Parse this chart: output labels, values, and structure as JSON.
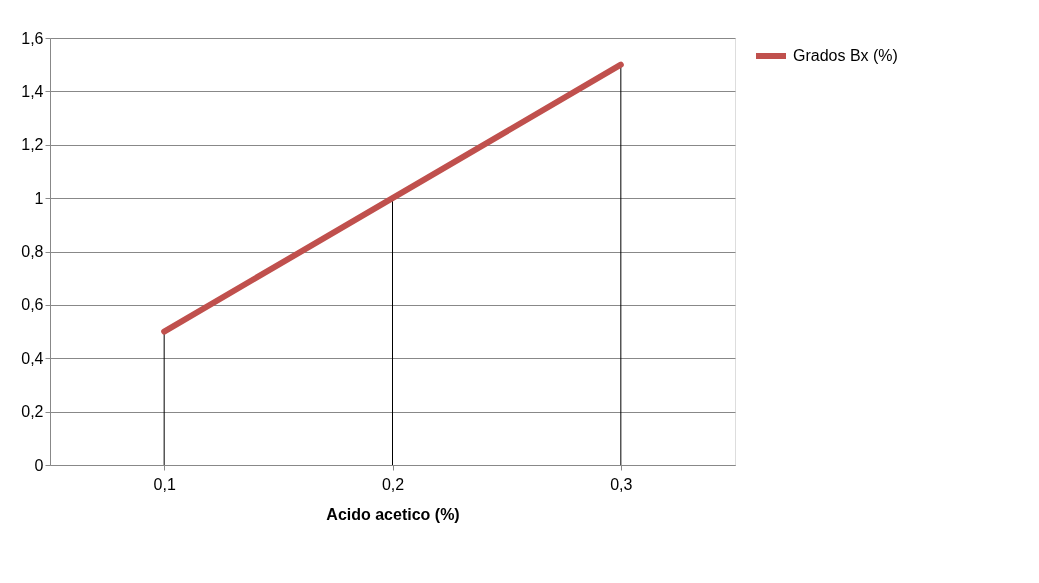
{
  "chart_data": {
    "type": "line",
    "xlabel": "Acido acetico (%)",
    "categories": [
      "0,1",
      "0,2",
      "0,3"
    ],
    "series": [
      {
        "name": "Grados Bx (%)",
        "color": "#c0504d",
        "values": [
          0.5,
          1,
          1.5
        ],
        "errors": [
          [
            0,
            0.5
          ],
          [
            0,
            1
          ],
          [
            0,
            1.5
          ]
        ]
      }
    ],
    "ylim": [
      0,
      1.6
    ],
    "yticks": [
      0,
      {
        "value": 0.2,
        "label": "0,2"
      },
      {
        "value": 0.4,
        "label": "0,4"
      },
      {
        "value": 0.6,
        "label": "0,6"
      },
      {
        "value": 0.8,
        "label": "0,8"
      },
      1,
      {
        "value": 1.2,
        "label": "1,2"
      },
      {
        "value": 1.4,
        "label": "1,4"
      },
      {
        "value": 1.6,
        "label": "1,6"
      }
    ],
    "grid": "y",
    "legend": "right",
    "marker": "none",
    "line_style": "solid"
  }
}
